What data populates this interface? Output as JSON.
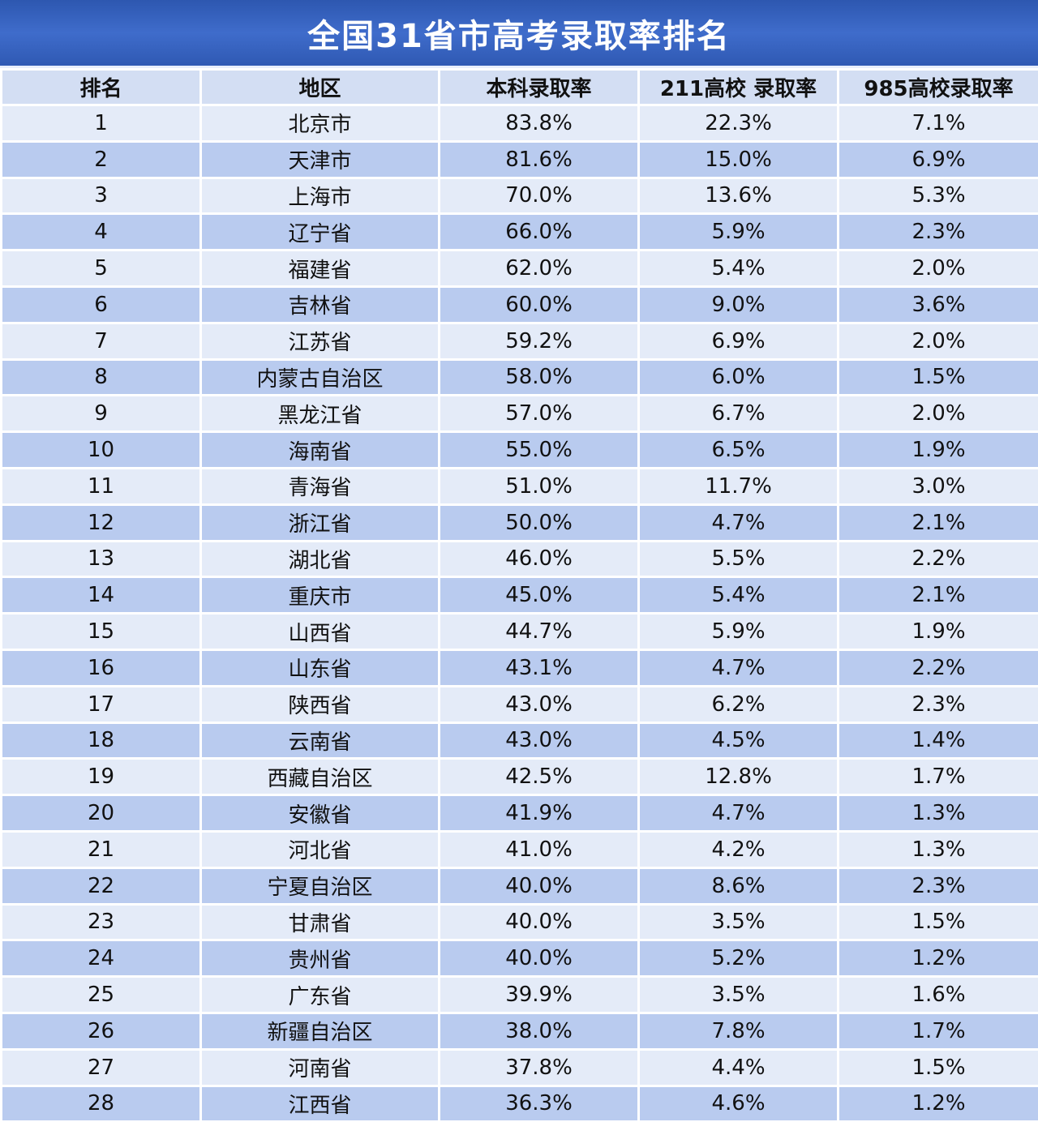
{
  "title": "全国31省市高考录取率排名",
  "headers": {
    "rank": "排名",
    "region": "地区",
    "undergrad_rate": "本科录取率",
    "rate_211": "211高校 录取率",
    "rate_985": "985高校录取率"
  },
  "rows": [
    [
      "1",
      "北京市",
      "83.8%",
      "22.3%",
      "7.1%"
    ],
    [
      "2",
      "天津市",
      "81.6%",
      "15.0%",
      "6.9%"
    ],
    [
      "3",
      "上海市",
      "70.0%",
      "13.6%",
      "5.3%"
    ],
    [
      "4",
      "辽宁省",
      "66.0%",
      "5.9%",
      "2.3%"
    ],
    [
      "5",
      "福建省",
      "62.0%",
      "5.4%",
      "2.0%"
    ],
    [
      "6",
      "吉林省",
      "60.0%",
      "9.0%",
      "3.6%"
    ],
    [
      "7",
      "江苏省",
      "59.2%",
      "6.9%",
      "2.0%"
    ],
    [
      "8",
      "内蒙古自治区",
      "58.0%",
      "6.0%",
      "1.5%"
    ],
    [
      "9",
      "黑龙江省",
      "57.0%",
      "6.7%",
      "2.0%"
    ],
    [
      "10",
      "海南省",
      "55.0%",
      "6.5%",
      "1.9%"
    ],
    [
      "11",
      "青海省",
      "51.0%",
      "11.7%",
      "3.0%"
    ],
    [
      "12",
      "浙江省",
      "50.0%",
      "4.7%",
      "2.1%"
    ],
    [
      "13",
      "湖北省",
      "46.0%",
      "5.5%",
      "2.2%"
    ],
    [
      "14",
      "重庆市",
      "45.0%",
      "5.4%",
      "2.1%"
    ],
    [
      "15",
      "山西省",
      "44.7%",
      "5.9%",
      "1.9%"
    ],
    [
      "16",
      "山东省",
      "43.1%",
      "4.7%",
      "2.2%"
    ],
    [
      "17",
      "陕西省",
      "43.0%",
      "6.2%",
      "2.3%"
    ],
    [
      "18",
      "云南省",
      "43.0%",
      "4.5%",
      "1.4%"
    ],
    [
      "19",
      "西藏自治区",
      "42.5%",
      "12.8%",
      "1.7%"
    ],
    [
      "20",
      "安徽省",
      "41.9%",
      "4.7%",
      "1.3%"
    ],
    [
      "21",
      "河北省",
      "41.0%",
      "4.2%",
      "1.3%"
    ],
    [
      "22",
      "宁夏自治区",
      "40.0%",
      "8.6%",
      "2.3%"
    ],
    [
      "23",
      "甘肃省",
      "40.0%",
      "3.5%",
      "1.5%"
    ],
    [
      "24",
      "贵州省",
      "40.0%",
      "5.2%",
      "1.2%"
    ],
    [
      "25",
      "广东省",
      "39.9%",
      "3.5%",
      "1.6%"
    ],
    [
      "26",
      "新疆自治区",
      "38.0%",
      "7.8%",
      "1.7%"
    ],
    [
      "27",
      "河南省",
      "37.8%",
      "4.4%",
      "1.5%"
    ],
    [
      "28",
      "江西省",
      "36.3%",
      "4.6%",
      "1.2%"
    ]
  ]
}
